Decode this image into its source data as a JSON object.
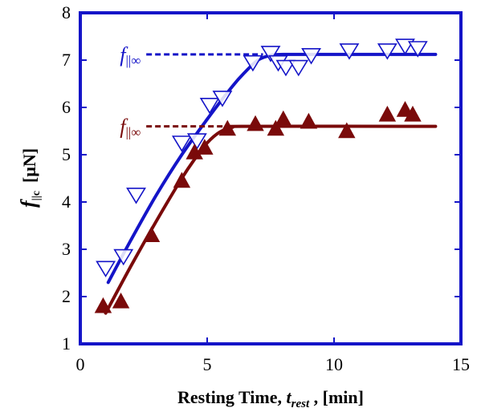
{
  "chart_data": {
    "type": "scatter",
    "xlabel_main": "Resting Time, ",
    "xlabel_var": "t",
    "xlabel_sub": "rest",
    "xlabel_unit": " ,   [min]",
    "ylabel_var": "f",
    "ylabel_sub": "||c",
    "ylabel_unit": "[μN]",
    "xlim": [
      0,
      15
    ],
    "ylim": [
      1,
      8
    ],
    "xticks": [
      0,
      5,
      10,
      15
    ],
    "yticks": [
      1,
      2,
      3,
      4,
      5,
      6,
      7,
      8
    ],
    "grid": false,
    "series": [
      {
        "marker": "triangle-down-open",
        "color": "#1414c8",
        "points": [
          [
            1.0,
            2.6
          ],
          [
            1.7,
            2.85
          ],
          [
            2.2,
            4.15
          ],
          [
            4.0,
            5.25
          ],
          [
            4.6,
            5.3
          ],
          [
            5.1,
            6.05
          ],
          [
            5.6,
            6.2
          ],
          [
            6.8,
            6.95
          ],
          [
            7.5,
            7.15
          ],
          [
            7.8,
            6.95
          ],
          [
            8.1,
            6.85
          ],
          [
            8.6,
            6.85
          ],
          [
            9.1,
            7.1
          ],
          [
            10.6,
            7.2
          ],
          [
            12.1,
            7.2
          ],
          [
            12.8,
            7.3
          ],
          [
            13.3,
            7.25
          ]
        ]
      },
      {
        "marker": "triangle-up-filled",
        "color": "#7a0a0a",
        "points": [
          [
            0.9,
            1.8
          ],
          [
            1.6,
            1.9
          ],
          [
            2.8,
            3.3
          ],
          [
            4.0,
            4.45
          ],
          [
            4.5,
            5.05
          ],
          [
            4.9,
            5.15
          ],
          [
            5.8,
            5.55
          ],
          [
            6.9,
            5.65
          ],
          [
            7.7,
            5.55
          ],
          [
            8.0,
            5.75
          ],
          [
            9.0,
            5.7
          ],
          [
            10.5,
            5.5
          ],
          [
            12.1,
            5.85
          ],
          [
            12.8,
            5.95
          ],
          [
            13.1,
            5.85
          ]
        ]
      }
    ],
    "fits": [
      {
        "color": "#1414c8",
        "points": [
          [
            1.1,
            2.3
          ],
          [
            2.0,
            3.2
          ],
          [
            3.0,
            4.15
          ],
          [
            4.0,
            5.0
          ],
          [
            5.0,
            5.75
          ],
          [
            6.0,
            6.45
          ],
          [
            6.5,
            6.75
          ],
          [
            7.0,
            7.0
          ],
          [
            7.5,
            7.1
          ],
          [
            8.0,
            7.12
          ],
          [
            10.0,
            7.12
          ],
          [
            14.0,
            7.12
          ]
        ],
        "asymptote": {
          "y": 7.12,
          "x_from": 2.6,
          "x_to": 7.2
        },
        "label_var": "f",
        "label_sub": "||∞",
        "label_anchor": [
          0.8,
          7.12
        ]
      },
      {
        "color": "#7a0a0a",
        "points": [
          [
            1.0,
            1.65
          ],
          [
            2.0,
            2.65
          ],
          [
            3.0,
            3.6
          ],
          [
            4.0,
            4.5
          ],
          [
            4.5,
            4.9
          ],
          [
            5.0,
            5.25
          ],
          [
            5.5,
            5.48
          ],
          [
            6.0,
            5.58
          ],
          [
            6.5,
            5.6
          ],
          [
            14.0,
            5.6
          ]
        ],
        "asymptote": {
          "y": 5.6,
          "x_from": 2.6,
          "x_to": 5.9
        },
        "label_var": "f",
        "label_sub": "||∞",
        "label_anchor": [
          0.8,
          5.6
        ]
      }
    ]
  }
}
